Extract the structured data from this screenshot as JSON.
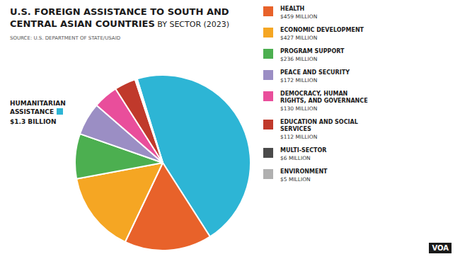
{
  "chart_data": {
    "type": "pie",
    "title": "U.S. FOREIGN ASSISTANCE TO SOUTH AND\nCENTRAL ASIAN COUNTRIES",
    "subtitle": "BY SECTOR (2023)",
    "source": "SOURCE: U.S. DEPARTMENT OF STATE/USAID",
    "categories": [
      "HUMANITARIAN\nASSISTANCE",
      "HEALTH",
      "ECONOMIC DEVELOPMENT",
      "PROGRAM SUPPORT",
      "PEACE AND SECURITY",
      "DEMOCRACY, HUMAN\nRIGHTS, AND GOVERNANCE",
      "EDUCATION AND SOCIAL\nSERVICES",
      "MULTI-SECTOR",
      "ENVIRONMENT"
    ],
    "values": [
      1300,
      459,
      427,
      236,
      172,
      130,
      112,
      6,
      5
    ],
    "value_labels": [
      "$1.3 BILLION",
      "$459 MILLION",
      "$427 MILLION",
      "$236 MILLION",
      "$172 MILLION",
      "$130 MILLION",
      "$112 MILLION",
      "$6 MILLION",
      "$5 MILLION"
    ],
    "colors": [
      "#2db5d5",
      "#e8622a",
      "#f5a623",
      "#4caf50",
      "#9b8ec4",
      "#e94e9b",
      "#c0392b",
      "#4a4a4a",
      "#b0b0b0"
    ],
    "legend": "right",
    "annotations": [
      "VOA"
    ]
  }
}
